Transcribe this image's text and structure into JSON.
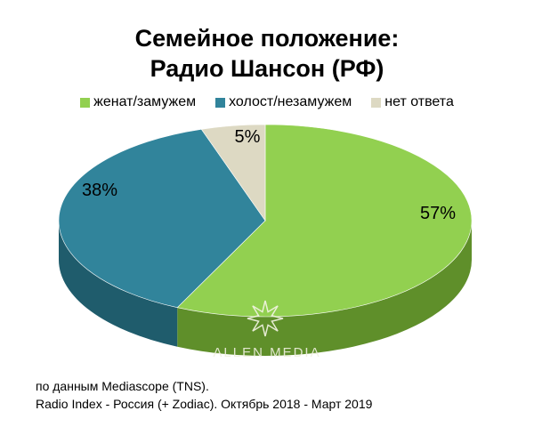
{
  "title_line1": "Семейное положение:",
  "title_line2": "Радио Шансон (РФ)",
  "chart_data": {
    "type": "pie",
    "categories": [
      "женат/замужем",
      "холост/незамужем",
      "нет ответа"
    ],
    "values": [
      57,
      38,
      5
    ],
    "labels": [
      "57%",
      "38%",
      "5%"
    ],
    "colors": [
      "#92d050",
      "#31849b",
      "#ddd9c3"
    ],
    "dark_colors": [
      "#5f8f2a",
      "#1f5c6c",
      "#a5a08a"
    ],
    "legend_position": "top"
  },
  "watermark": "ALLEN MEDIA",
  "source_line1": "по данным Mediascope (TNS).",
  "source_line2": "Radio Index - Россия (+ Zodiac). Октябрь 2018 - Март 2019"
}
